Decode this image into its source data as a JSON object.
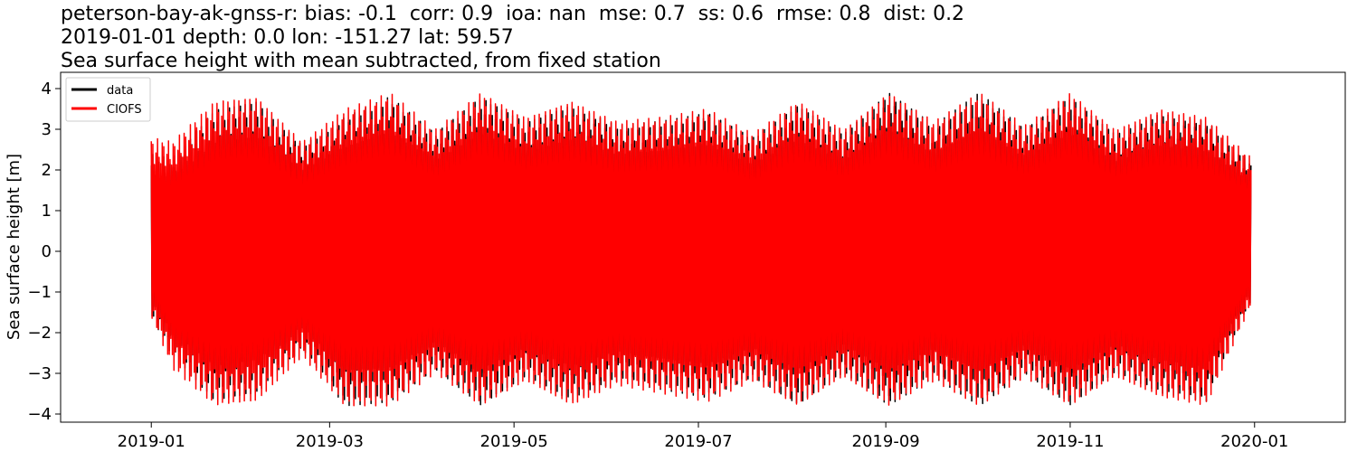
{
  "title_lines": [
    "peterson-bay-ak-gnss-r: bias: -0.1  corr: 0.9  ioa: nan  mse: 0.7  ss: 0.6  rmse: 0.8  dist: 0.2",
    "2019-01-01 depth: 0.0 lon: -151.27 lat: 59.57",
    "Sea surface height with mean subtracted, from fixed station"
  ],
  "chart_data": {
    "type": "line",
    "ylabel": "Sea surface height [m]",
    "xlabel": "",
    "xlim": [
      "2018-12-02",
      "2020-01-31"
    ],
    "ylim": [
      -4.2,
      4.4
    ],
    "x_ticks": [
      "2019-01",
      "2019-03",
      "2019-05",
      "2019-07",
      "2019-09",
      "2019-11",
      "2020-01"
    ],
    "y_ticks": [
      -4,
      -3,
      -2,
      -1,
      0,
      1,
      2,
      3,
      4
    ],
    "grid": false,
    "legend_position": "top-left",
    "series": [
      {
        "name": "data",
        "color": "#000000",
        "x_range": [
          "2019-01-01",
          "2019-12-31"
        ],
        "envelope": [
          {
            "x": "2019-01-01",
            "max": 2.4,
            "min": -1.6
          },
          {
            "x": "2019-01-08",
            "max": 2.3,
            "min": -2.6
          },
          {
            "x": "2019-01-22",
            "max": 3.5,
            "min": -3.7
          },
          {
            "x": "2019-02-05",
            "max": 3.7,
            "min": -3.5
          },
          {
            "x": "2019-02-20",
            "max": 2.6,
            "min": -2.4
          },
          {
            "x": "2019-03-06",
            "max": 3.3,
            "min": -3.8
          },
          {
            "x": "2019-03-21",
            "max": 3.8,
            "min": -3.7
          },
          {
            "x": "2019-04-05",
            "max": 2.9,
            "min": -2.9
          },
          {
            "x": "2019-04-20",
            "max": 3.8,
            "min": -3.8
          },
          {
            "x": "2019-05-05",
            "max": 3.2,
            "min": -3.1
          },
          {
            "x": "2019-05-20",
            "max": 3.6,
            "min": -3.7
          },
          {
            "x": "2019-06-04",
            "max": 3.1,
            "min": -3.2
          },
          {
            "x": "2019-06-19",
            "max": 3.2,
            "min": -3.4
          },
          {
            "x": "2019-07-04",
            "max": 3.4,
            "min": -3.6
          },
          {
            "x": "2019-07-19",
            "max": 2.8,
            "min": -3.1
          },
          {
            "x": "2019-08-03",
            "max": 3.6,
            "min": -3.8
          },
          {
            "x": "2019-08-18",
            "max": 2.9,
            "min": -3.0
          },
          {
            "x": "2019-09-02",
            "max": 3.9,
            "min": -3.8
          },
          {
            "x": "2019-09-17",
            "max": 3.1,
            "min": -3.1
          },
          {
            "x": "2019-10-02",
            "max": 3.9,
            "min": -3.8
          },
          {
            "x": "2019-10-17",
            "max": 3.0,
            "min": -3.0
          },
          {
            "x": "2019-11-01",
            "max": 3.8,
            "min": -3.8
          },
          {
            "x": "2019-11-16",
            "max": 2.9,
            "min": -3.0
          },
          {
            "x": "2019-12-01",
            "max": 3.4,
            "min": -3.5
          },
          {
            "x": "2019-12-16",
            "max": 3.2,
            "min": -3.7
          },
          {
            "x": "2019-12-31",
            "max": 2.2,
            "min": -1.2
          }
        ]
      },
      {
        "name": "CIOFS",
        "color": "#ff0000",
        "x_range": [
          "2019-01-01",
          "2019-12-31"
        ],
        "envelope": [
          {
            "x": "2019-01-01",
            "max": 2.8,
            "min": -1.6
          },
          {
            "x": "2019-01-08",
            "max": 2.7,
            "min": -2.9
          },
          {
            "x": "2019-01-22",
            "max": 3.7,
            "min": -3.8
          },
          {
            "x": "2019-02-05",
            "max": 3.8,
            "min": -3.7
          },
          {
            "x": "2019-02-20",
            "max": 2.7,
            "min": -2.6
          },
          {
            "x": "2019-03-06",
            "max": 3.5,
            "min": -3.8
          },
          {
            "x": "2019-03-21",
            "max": 3.9,
            "min": -3.8
          },
          {
            "x": "2019-04-05",
            "max": 3.0,
            "min": -3.0
          },
          {
            "x": "2019-04-20",
            "max": 3.9,
            "min": -3.8
          },
          {
            "x": "2019-05-05",
            "max": 3.3,
            "min": -3.2
          },
          {
            "x": "2019-05-20",
            "max": 3.7,
            "min": -3.8
          },
          {
            "x": "2019-06-04",
            "max": 3.2,
            "min": -3.3
          },
          {
            "x": "2019-06-19",
            "max": 3.3,
            "min": -3.5
          },
          {
            "x": "2019-07-04",
            "max": 3.5,
            "min": -3.7
          },
          {
            "x": "2019-07-19",
            "max": 2.9,
            "min": -3.2
          },
          {
            "x": "2019-08-03",
            "max": 3.7,
            "min": -3.8
          },
          {
            "x": "2019-08-18",
            "max": 3.0,
            "min": -3.1
          },
          {
            "x": "2019-09-02",
            "max": 3.9,
            "min": -3.8
          },
          {
            "x": "2019-09-17",
            "max": 3.2,
            "min": -3.2
          },
          {
            "x": "2019-10-02",
            "max": 3.9,
            "min": -3.8
          },
          {
            "x": "2019-10-17",
            "max": 3.1,
            "min": -3.1
          },
          {
            "x": "2019-11-01",
            "max": 3.9,
            "min": -3.8
          },
          {
            "x": "2019-11-16",
            "max": 3.0,
            "min": -3.1
          },
          {
            "x": "2019-12-01",
            "max": 3.5,
            "min": -3.6
          },
          {
            "x": "2019-12-16",
            "max": 3.3,
            "min": -3.8
          },
          {
            "x": "2019-12-31",
            "max": 2.3,
            "min": -1.3
          }
        ]
      }
    ]
  }
}
